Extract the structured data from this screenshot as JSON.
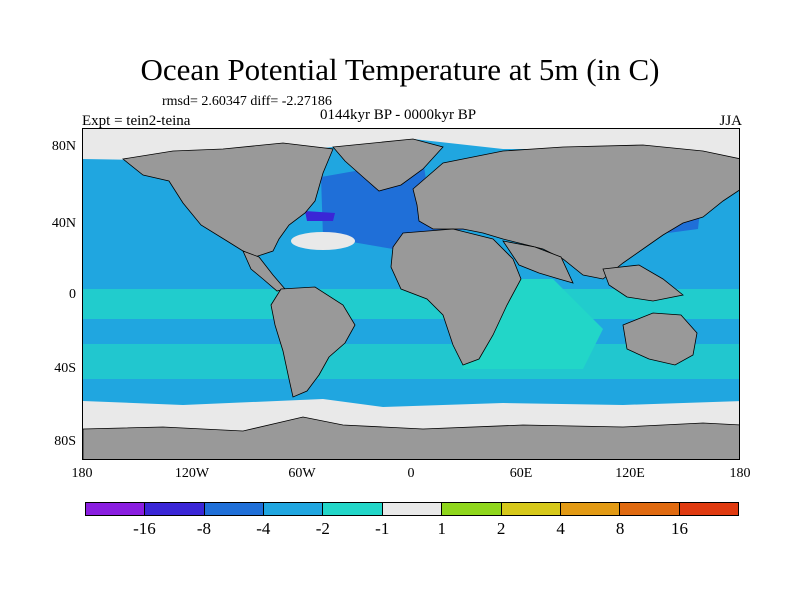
{
  "title": "Ocean Potential Temperature at 5m (in C)",
  "stats": "rmsd= 2.60347  diff= -2.27186",
  "subtitle": "0144kyr BP - 0000kyr BP",
  "experiment": "Expt = tein2-teina",
  "season": "JJA",
  "y_ticks": [
    "80N",
    "40N",
    "0",
    "40S",
    "80S"
  ],
  "x_ticks": [
    "180",
    "120W",
    "60W",
    "0",
    "60E",
    "120E",
    "180"
  ],
  "colorbar": {
    "colors": [
      "#8a1ee0",
      "#3a26d6",
      "#1f6fd8",
      "#20a6e0",
      "#22d6c8",
      "#e9e9e9",
      "#8fd61c",
      "#d6c81a",
      "#e29a14",
      "#e06a10",
      "#e03a10"
    ],
    "labels": [
      "-16",
      "-8",
      "-4",
      "-2",
      "-1",
      "1",
      "2",
      "4",
      "8",
      "16"
    ]
  },
  "map_colors": {
    "land": "#999999",
    "ocean_cool": "#20a6e0",
    "ocean_mild": "#22d6c8",
    "ocean_cold": "#1f6fd8",
    "ocean_coldest": "#3a26d6",
    "ice": "#e9e9e9"
  }
}
